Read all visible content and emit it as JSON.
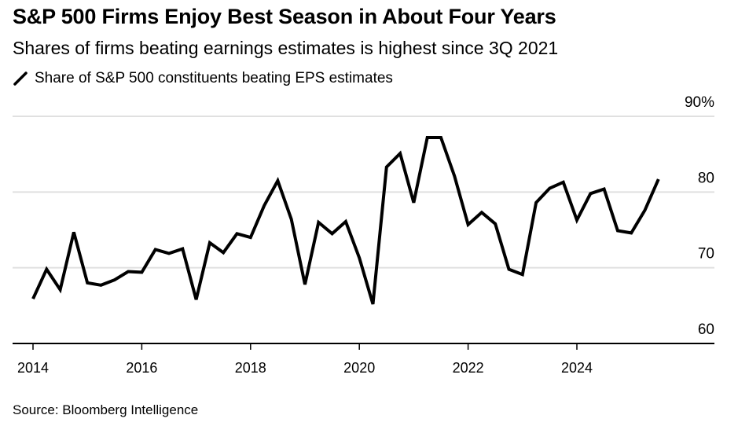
{
  "header": {
    "title": "S&P 500 Firms Enjoy Best Season in About Four Years",
    "subtitle": "Shares of firms beating earnings estimates is highest since 3Q 2021",
    "legend_label": "Share of S&P 500 constituents beating EPS estimates"
  },
  "footer": {
    "source": "Source: Bloomberg Intelligence"
  },
  "colors": {
    "line": "#000000",
    "grid": "#e0e0e0",
    "axis": "#000000"
  },
  "chart_data": {
    "type": "line",
    "title": "S&P 500 Firms Enjoy Best Season in About Four Years",
    "subtitle": "Shares of firms beating earnings estimates is highest since 3Q 2021",
    "xlabel": "",
    "ylabel": "",
    "ylim": [
      60,
      90
    ],
    "yticks": [
      60,
      70,
      80,
      90
    ],
    "ytick_labels": [
      "60",
      "70",
      "80",
      "90%"
    ],
    "xlim": [
      2014,
      2026.3
    ],
    "xticks": [
      2014,
      2016,
      2018,
      2020,
      2022,
      2024
    ],
    "xtick_labels": [
      "2014",
      "2016",
      "2018",
      "2020",
      "2022",
      "2024"
    ],
    "grid": true,
    "y_axis_position": "right",
    "legend": "top-left",
    "series": [
      {
        "name": "Share of S&P 500 constituents beating EPS estimates",
        "x": [
          2014.0,
          2014.25,
          2014.5,
          2014.75,
          2015.0,
          2015.25,
          2015.5,
          2015.75,
          2016.0,
          2016.25,
          2016.5,
          2016.75,
          2017.0,
          2017.25,
          2017.5,
          2017.75,
          2018.0,
          2018.25,
          2018.5,
          2018.75,
          2019.0,
          2019.25,
          2019.5,
          2019.75,
          2020.0,
          2020.25,
          2020.5,
          2020.75,
          2021.0,
          2021.25,
          2021.5,
          2021.75,
          2022.0,
          2022.25,
          2022.5,
          2022.75,
          2023.0,
          2023.25,
          2023.5,
          2023.75,
          2024.0,
          2024.25,
          2024.5,
          2024.75,
          2025.0,
          2025.25,
          2025.5
        ],
        "values": [
          65.9,
          69.8,
          67.1,
          74.7,
          68.0,
          67.7,
          68.4,
          69.5,
          69.4,
          72.4,
          71.9,
          72.5,
          65.8,
          73.3,
          72.0,
          74.5,
          74.0,
          78.2,
          81.5,
          76.4,
          67.8,
          76.0,
          74.5,
          76.1,
          71.3,
          65.2,
          83.3,
          85.1,
          78.6,
          87.2,
          87.2,
          82.1,
          75.7,
          77.3,
          75.8,
          69.8,
          69.1,
          78.6,
          80.5,
          81.3,
          76.3,
          79.8,
          80.4,
          74.9,
          74.6,
          77.6,
          81.7
        ]
      }
    ]
  }
}
